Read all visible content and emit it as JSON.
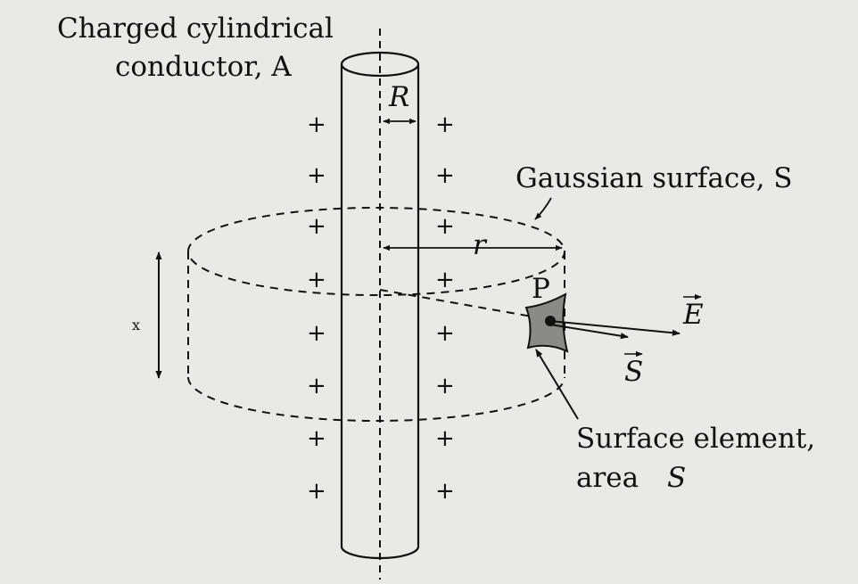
{
  "labels": {
    "conductor_line1": "Charged cylindrical",
    "conductor_line2": "conductor, A",
    "radius": "R",
    "gaussian": "Gaussian surface, S",
    "radial": "r",
    "point": "P",
    "field": "E",
    "area_vector": "S",
    "element_line1": "Surface element,",
    "element_line2_word": "area",
    "element_line2_symbol": "S",
    "height": "x"
  },
  "charges": {
    "symbol": "+",
    "left_column": [
      "+",
      "+",
      "+",
      "+",
      "+",
      "+",
      "+",
      "+"
    ],
    "right_column": [
      "+",
      "+",
      "+",
      "+",
      "+",
      "+",
      "+",
      "+"
    ]
  }
}
